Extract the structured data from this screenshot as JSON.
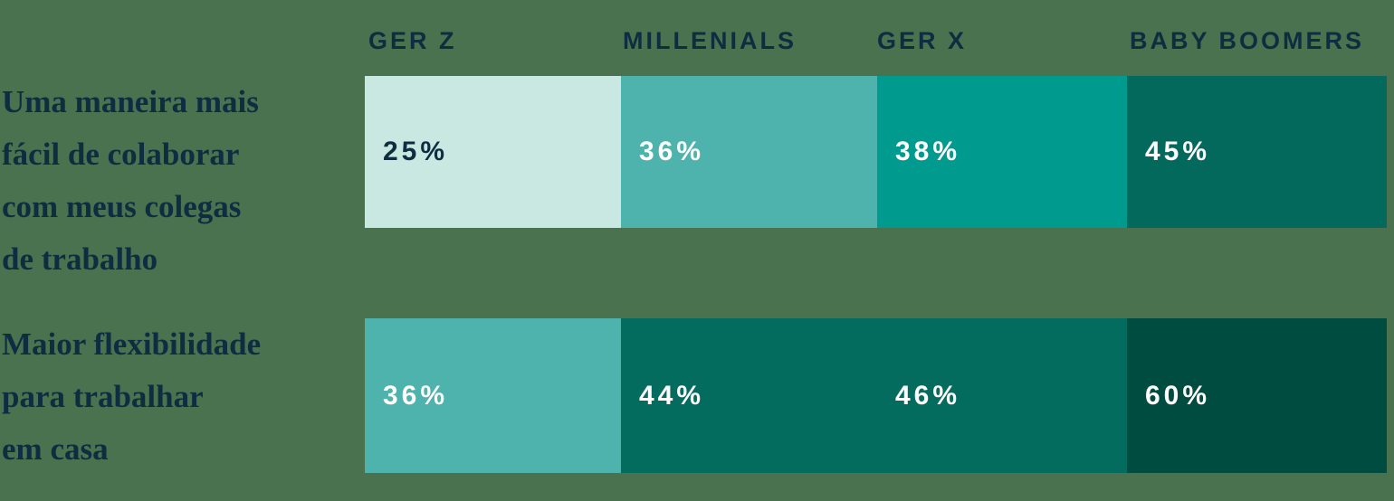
{
  "colors": {
    "background": "#4A724F",
    "navy": "#0E2D40",
    "white": "#FFFFFF",
    "mint": "#C9E8E2",
    "teal_light": "#4DB3AC",
    "teal_mid": "#009A8E",
    "teal_dark": "#03695C",
    "teal_darker": "#046C5F",
    "teal_darkest": "#004C40"
  },
  "columns": [
    {
      "label": "GER Z"
    },
    {
      "label": "MILLENIALS"
    },
    {
      "label": "GER X"
    },
    {
      "label": "BABY BOOMERS"
    }
  ],
  "rows": [
    {
      "label": "Uma maneira mais\nfácil de colaborar\ncom meus colegas\nde trabalho",
      "cells": [
        {
          "value": "25%",
          "color_key": "mint"
        },
        {
          "value": "36%",
          "color_key": "teal_light"
        },
        {
          "value": "38%",
          "color_key": "teal_mid"
        },
        {
          "value": "45%",
          "color_key": "teal_dark"
        }
      ]
    },
    {
      "label": "Maior flexibilidade\npara trabalhar\nem casa",
      "cells": [
        {
          "value": "36%",
          "color_key": "teal_light"
        },
        {
          "value": "44%",
          "color_key": "teal_darker"
        },
        {
          "value": "46%",
          "color_key": "teal_darker"
        },
        {
          "value": "60%",
          "color_key": "teal_darkest"
        }
      ]
    }
  ],
  "chart_data": {
    "type": "heatmap",
    "categories": [
      "GER Z",
      "MILLENIALS",
      "GER X",
      "BABY BOOMERS"
    ],
    "series": [
      {
        "name": "Uma maneira mais fácil de colaborar com meus colegas de trabalho",
        "values": [
          25,
          36,
          38,
          45
        ]
      },
      {
        "name": "Maior flexibilidade para trabalhar em casa",
        "values": [
          36,
          44,
          46,
          60
        ]
      }
    ],
    "value_unit": "%",
    "title": "",
    "xlabel": "",
    "ylabel": "",
    "legend_position": "none",
    "grid": false
  }
}
